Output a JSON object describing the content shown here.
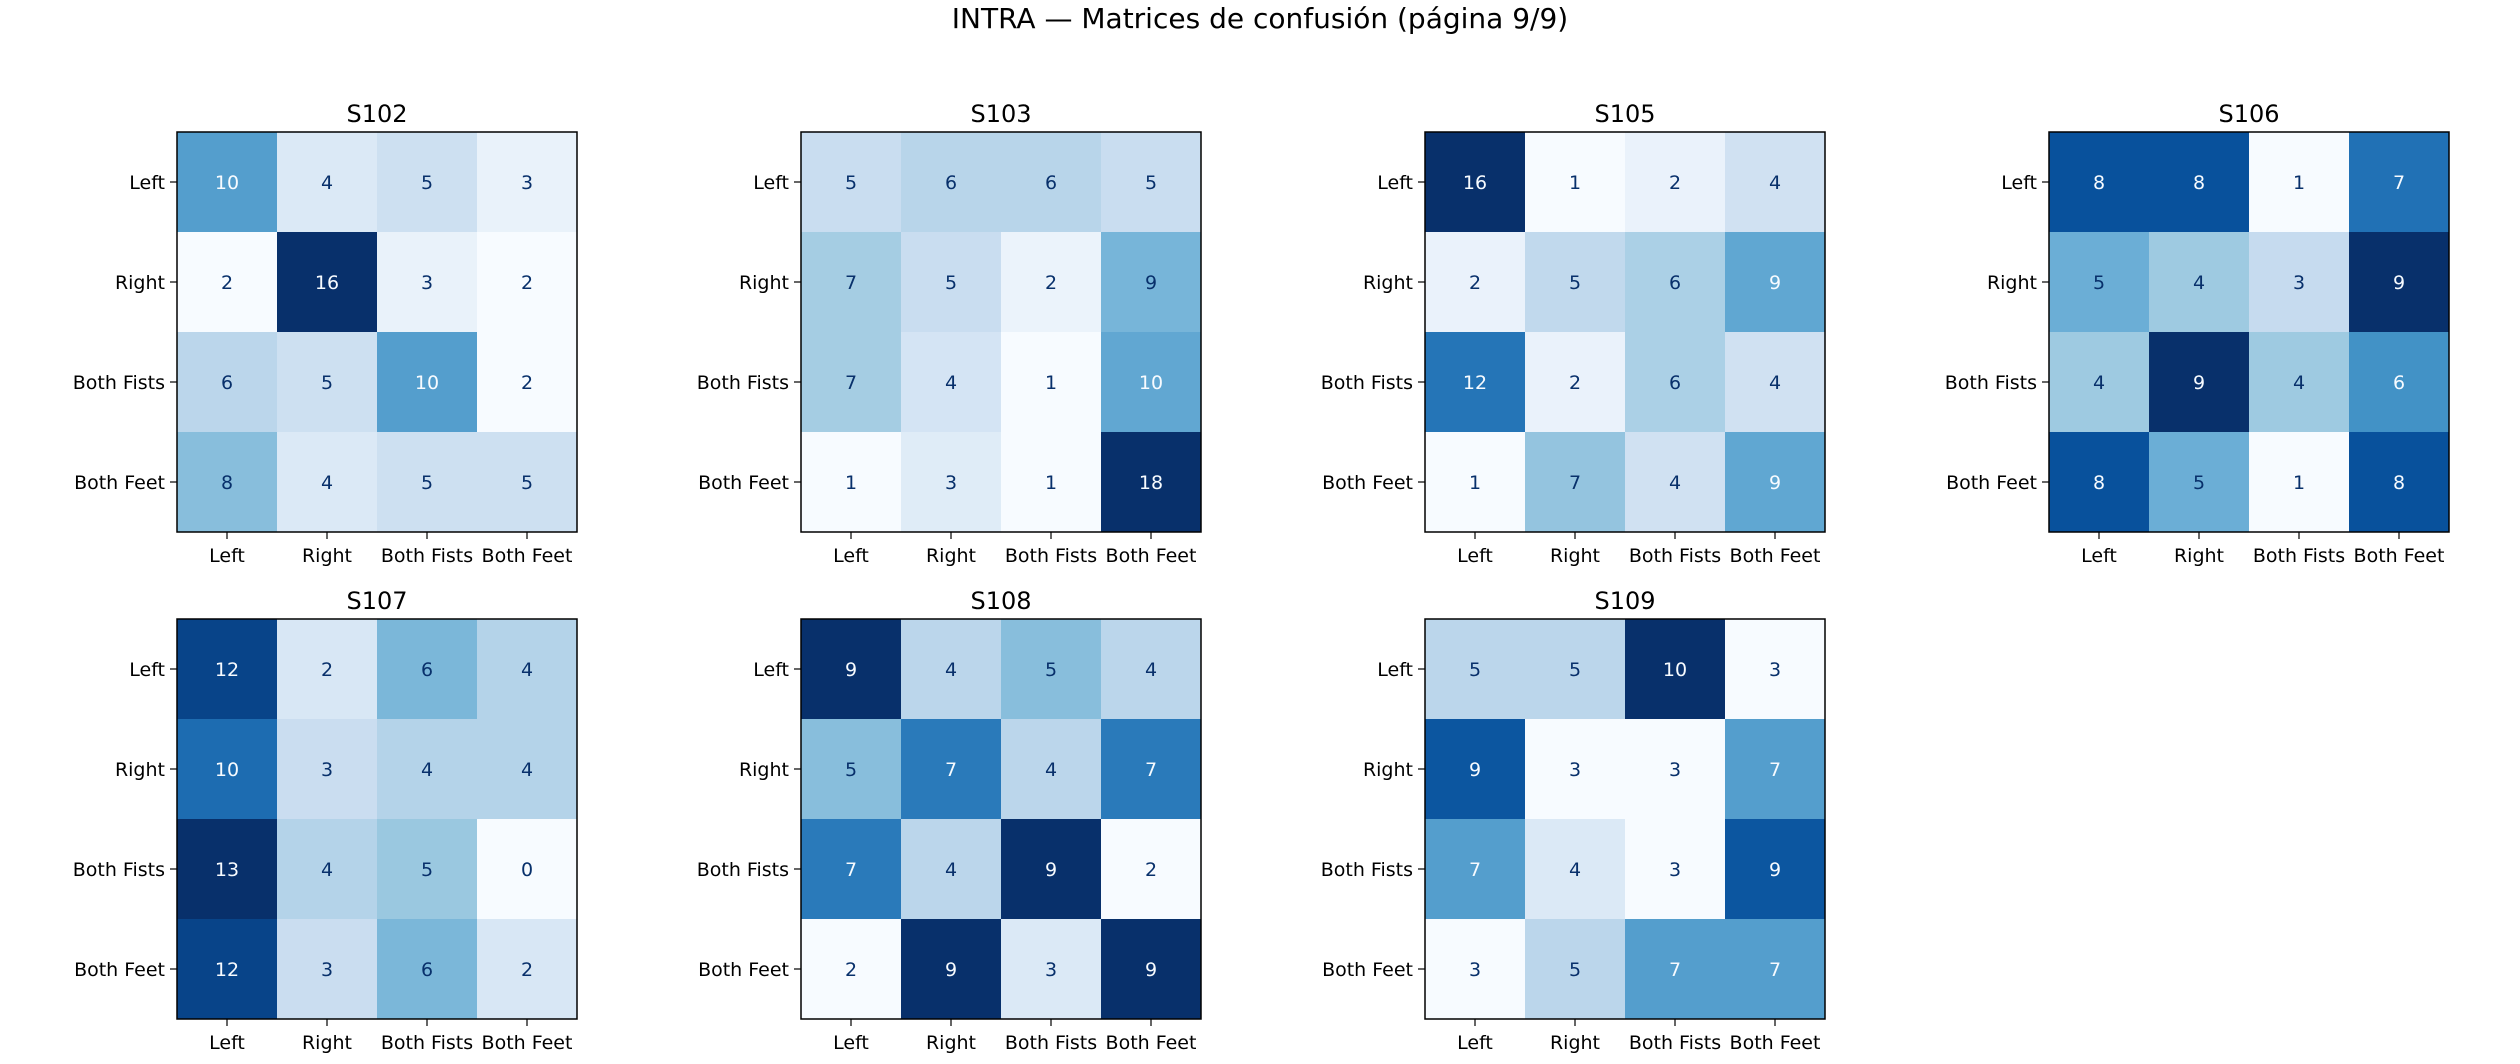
{
  "title": "INTRA — Matrices de confusión (página 9/9)",
  "chart_data": [
    {
      "type": "heatmap",
      "title": "S102",
      "x_categories": [
        "Left",
        "Right",
        "Both Fists",
        "Both Feet"
      ],
      "y_categories": [
        "Left",
        "Right",
        "Both Fists",
        "Both Feet"
      ],
      "values": [
        [
          10,
          4,
          5,
          3
        ],
        [
          2,
          16,
          3,
          2
        ],
        [
          6,
          5,
          10,
          2
        ],
        [
          8,
          4,
          5,
          5
        ]
      ],
      "colormap": "Blues"
    },
    {
      "type": "heatmap",
      "title": "S103",
      "x_categories": [
        "Left",
        "Right",
        "Both Fists",
        "Both Feet"
      ],
      "y_categories": [
        "Left",
        "Right",
        "Both Fists",
        "Both Feet"
      ],
      "values": [
        [
          5,
          6,
          6,
          5
        ],
        [
          7,
          5,
          2,
          9
        ],
        [
          7,
          4,
          1,
          10
        ],
        [
          1,
          3,
          1,
          18
        ]
      ],
      "colormap": "Blues"
    },
    {
      "type": "heatmap",
      "title": "S105",
      "x_categories": [
        "Left",
        "Right",
        "Both Fists",
        "Both Feet"
      ],
      "y_categories": [
        "Left",
        "Right",
        "Both Fists",
        "Both Feet"
      ],
      "values": [
        [
          16,
          1,
          2,
          4
        ],
        [
          2,
          5,
          6,
          9
        ],
        [
          12,
          2,
          6,
          4
        ],
        [
          1,
          7,
          4,
          9
        ]
      ],
      "colormap": "Blues"
    },
    {
      "type": "heatmap",
      "title": "S106",
      "x_categories": [
        "Left",
        "Right",
        "Both Fists",
        "Both Feet"
      ],
      "y_categories": [
        "Left",
        "Right",
        "Both Fists",
        "Both Feet"
      ],
      "values": [
        [
          8,
          8,
          1,
          7
        ],
        [
          5,
          4,
          3,
          9
        ],
        [
          4,
          9,
          4,
          6
        ],
        [
          8,
          5,
          1,
          8
        ]
      ],
      "colormap": "Blues"
    },
    {
      "type": "heatmap",
      "title": "S107",
      "x_categories": [
        "Left",
        "Right",
        "Both Fists",
        "Both Feet"
      ],
      "y_categories": [
        "Left",
        "Right",
        "Both Fists",
        "Both Feet"
      ],
      "values": [
        [
          12,
          2,
          6,
          4
        ],
        [
          10,
          3,
          4,
          4
        ],
        [
          13,
          4,
          5,
          0
        ],
        [
          12,
          3,
          6,
          2
        ]
      ],
      "colormap": "Blues"
    },
    {
      "type": "heatmap",
      "title": "S108",
      "x_categories": [
        "Left",
        "Right",
        "Both Fists",
        "Both Feet"
      ],
      "y_categories": [
        "Left",
        "Right",
        "Both Fists",
        "Both Feet"
      ],
      "values": [
        [
          9,
          4,
          5,
          4
        ],
        [
          5,
          7,
          4,
          7
        ],
        [
          7,
          4,
          9,
          2
        ],
        [
          2,
          9,
          3,
          9
        ]
      ],
      "colormap": "Blues"
    },
    {
      "type": "heatmap",
      "title": "S109",
      "x_categories": [
        "Left",
        "Right",
        "Both Fists",
        "Both Feet"
      ],
      "y_categories": [
        "Left",
        "Right",
        "Both Fists",
        "Both Feet"
      ],
      "values": [
        [
          5,
          5,
          10,
          3
        ],
        [
          9,
          3,
          3,
          7
        ],
        [
          7,
          4,
          3,
          9
        ],
        [
          3,
          5,
          7,
          7
        ]
      ],
      "colormap": "Blues"
    }
  ]
}
